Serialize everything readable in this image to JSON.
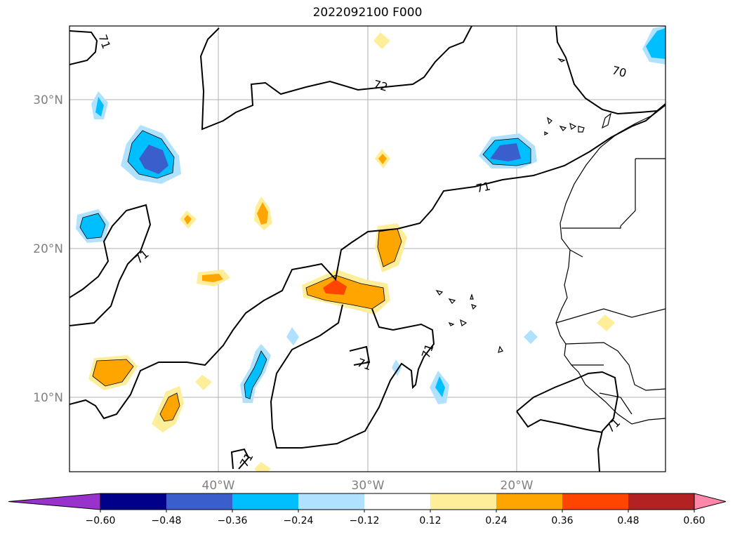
{
  "title": "2022092100 F000",
  "map": {
    "lat_ticks": [
      {
        "value": 30,
        "label": "30°N"
      },
      {
        "value": 20,
        "label": "20°N"
      },
      {
        "value": 10,
        "label": "10°N"
      }
    ],
    "lon_ticks": [
      {
        "value": -40,
        "label": "40°W"
      },
      {
        "value": -30,
        "label": "30°W"
      },
      {
        "value": -20,
        "label": "20°W"
      }
    ],
    "extent": {
      "lon_min": -50,
      "lon_max": -10,
      "lat_min": 5,
      "lat_max": 35
    },
    "gridlines": true,
    "contour_labels": [
      "71",
      "72",
      "70",
      "71",
      "71",
      "71",
      "71",
      "71",
      "71"
    ]
  },
  "colorbar": {
    "extend": "both",
    "levels": [
      -0.72,
      -0.6,
      -0.48,
      -0.36,
      -0.24,
      -0.12,
      0.12,
      0.24,
      0.36,
      0.48,
      0.6,
      0.72
    ],
    "tick_labels": [
      "−0.60",
      "−0.48",
      "−0.36",
      "−0.24",
      "−0.12",
      "0.12",
      "0.24",
      "0.36",
      "0.48",
      "0.60"
    ],
    "colors": [
      "#9932cc",
      "#00008b",
      "#3a5fcd",
      "#00bfff",
      "#b0e2ff",
      "#ffffff",
      "#ffee99",
      "#ffa500",
      "#ff4500",
      "#b22222",
      "#ff88aa"
    ],
    "colors_extend": {
      "under": "#9932cc",
      "over": "#ff88aa"
    }
  }
}
